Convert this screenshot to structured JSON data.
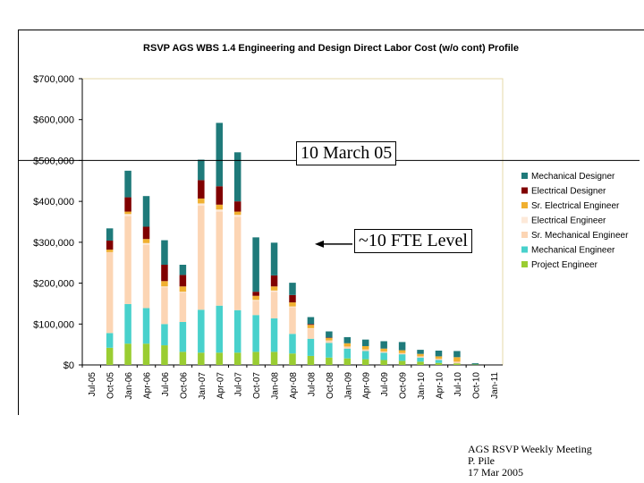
{
  "chart_data": {
    "type": "stacked_bar",
    "title": "RSVP AGS WBS 1.4 Engineering and Design Direct Labor Cost (w/o cont) Profile",
    "xlabel": "",
    "ylabel": "",
    "ylim": [
      0,
      700000
    ],
    "y_ticks": [
      "$0",
      "$100,000",
      "$200,000",
      "$300,000",
      "$400,000",
      "$500,000",
      "$600,000",
      "$700,000"
    ],
    "x_tick_labels": [
      "Jul-05",
      "Oct-05",
      "Jan-06",
      "Apr-06",
      "Jul-06",
      "Oct-06",
      "Jan-07",
      "Apr-07",
      "Jul-07",
      "Oct-07",
      "Jan-08",
      "Apr-08",
      "Jul-08",
      "Oct-08",
      "Jan-09",
      "Apr-09",
      "Jul-09",
      "Oct-09",
      "Jan-10",
      "Apr-10",
      "Jul-10",
      "Oct-10",
      "Jan-11"
    ],
    "categories": [
      "Oct-05",
      "Jan-06",
      "Apr-06",
      "Jul-06",
      "Oct-06",
      "Jan-07",
      "Apr-07",
      "Jul-07",
      "Oct-07",
      "Jan-08",
      "Apr-08",
      "Jul-08",
      "Oct-08",
      "Jan-09",
      "Apr-09",
      "Jul-09",
      "Oct-09",
      "Jan-10",
      "Apr-10",
      "Jul-10",
      "Oct-10"
    ],
    "series": [
      {
        "name": "Project Engineer",
        "color": "#9acd32",
        "values": [
          42000,
          52000,
          52000,
          48000,
          32000,
          30000,
          30000,
          30000,
          32000,
          32000,
          28000,
          22000,
          18000,
          16000,
          14000,
          12000,
          10000,
          8000,
          5000,
          4000,
          1000
        ]
      },
      {
        "name": "Mechanical Engineer",
        "color": "#48d1cc",
        "values": [
          36000,
          97000,
          87000,
          52000,
          73000,
          105000,
          115000,
          104000,
          90000,
          82000,
          48000,
          42000,
          36000,
          24000,
          20000,
          18000,
          16000,
          10000,
          7000,
          0,
          0
        ]
      },
      {
        "name": "Sr. Mechanical Engineer",
        "color": "#fcd5b4",
        "values": [
          198000,
          215000,
          155000,
          90000,
          72000,
          255000,
          230000,
          228000,
          35000,
          65000,
          65000,
          25000,
          6000,
          5000,
          4000,
          3000,
          3000,
          3000,
          3000,
          4000,
          0
        ]
      },
      {
        "name": "Electrical Engineer",
        "color": "#fde9d9",
        "values": [
          0,
          5000,
          4000,
          2000,
          2000,
          5000,
          5000,
          5000,
          2000,
          3000,
          2000,
          1000,
          0,
          0,
          0,
          0,
          0,
          0,
          0,
          0,
          0
        ]
      },
      {
        "name": "Sr. Electrical Engineer",
        "color": "#f0b030",
        "values": [
          6000,
          6000,
          10000,
          13000,
          13000,
          12000,
          12000,
          8000,
          10000,
          10000,
          10000,
          8000,
          6000,
          8000,
          8000,
          7000,
          7000,
          6000,
          6000,
          11000,
          0
        ]
      },
      {
        "name": "Electrical Designer",
        "color": "#800000",
        "values": [
          22000,
          35000,
          30000,
          40000,
          28000,
          45000,
          45000,
          25000,
          10000,
          27000,
          18000,
          2000,
          1000,
          0,
          0,
          0,
          0,
          0,
          0,
          0,
          0
        ]
      },
      {
        "name": "Mechanical Designer",
        "color": "#1f7a7a",
        "values": [
          30000,
          65000,
          75000,
          60000,
          25000,
          50000,
          155000,
          120000,
          133000,
          80000,
          30000,
          17000,
          15000,
          15000,
          16000,
          18000,
          20000,
          10000,
          14000,
          15000,
          3000
        ]
      }
    ],
    "legend_order": [
      "Mechanical Designer",
      "Electrical Designer",
      "Sr. Electrical Engineer",
      "Electrical Engineer",
      "Sr. Mechanical Engineer",
      "Mechanical Engineer",
      "Project Engineer"
    ],
    "legend_position": "right",
    "reference_lines": [
      {
        "y": 500000,
        "label": "10 March 05"
      },
      {
        "y": 300000,
        "label": "~10 FTE Level"
      }
    ]
  },
  "footer": {
    "line1": "AGS RSVP Weekly Meeting",
    "line2": "P. Pile",
    "line3": "17 Mar 2005"
  }
}
